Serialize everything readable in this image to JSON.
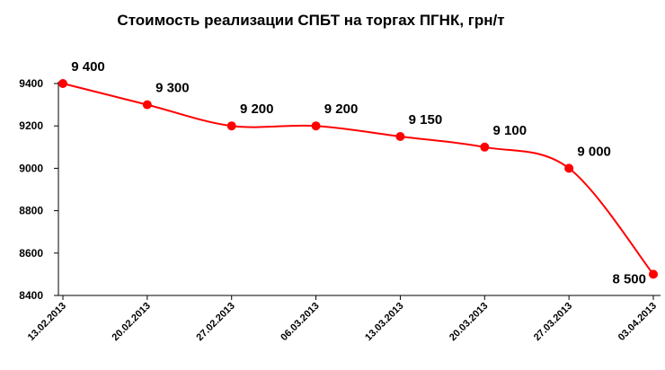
{
  "chart_data": {
    "type": "line",
    "title": "Стоимость реализации СПБТ на торгах ПГНК, грн/т",
    "xlabel": "",
    "ylabel": "",
    "categories": [
      "13.02.2013",
      "20.02.2013",
      "27.02.2013",
      "06.03.2013",
      "13.03.2013",
      "20.03.2013",
      "27.03.2013",
      "03.04.2013"
    ],
    "values": [
      9400,
      9300,
      9200,
      9200,
      9150,
      9100,
      9000,
      8500
    ],
    "data_labels": [
      "9 400",
      "9 300",
      "9 200",
      "9 200",
      "9 150",
      "9 100",
      "9 000",
      "8 500"
    ],
    "ylim": [
      8400,
      9400
    ],
    "yticks": [
      "8400",
      "8600",
      "8800",
      "9000",
      "9200",
      "9400"
    ],
    "grid": false,
    "legend": "none",
    "line_color": "#ff0000",
    "marker_color": "#ff0000"
  }
}
